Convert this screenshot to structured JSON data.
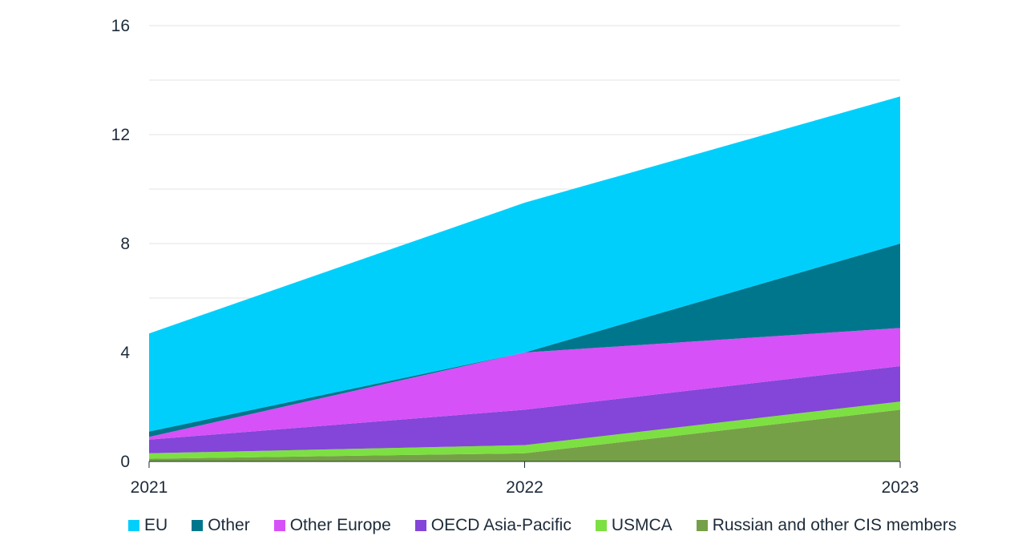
{
  "chart_data": {
    "type": "area",
    "stacked": true,
    "x": [
      "2021",
      "2022",
      "2023"
    ],
    "ylim": [
      0,
      16
    ],
    "yticks": [
      0,
      4,
      8,
      12,
      16
    ],
    "grid": true,
    "legend_position": "bottom",
    "series": [
      {
        "name": "Russian and other CIS members",
        "color": "#76a047",
        "values": [
          0.1,
          0.3,
          1.9
        ]
      },
      {
        "name": "USMCA",
        "color": "#7de042",
        "values": [
          0.2,
          0.3,
          0.3
        ]
      },
      {
        "name": "OECD Asia-Pacific",
        "color": "#8346d8",
        "values": [
          0.5,
          1.3,
          1.3
        ]
      },
      {
        "name": "Other Europe",
        "color": "#d651f7",
        "values": [
          0.1,
          2.1,
          1.4
        ]
      },
      {
        "name": "Other",
        "color": "#00768c",
        "values": [
          0.2,
          0.0,
          3.1
        ]
      },
      {
        "name": "EU",
        "color": "#00cffc",
        "values": [
          3.6,
          5.5,
          5.4
        ]
      }
    ]
  },
  "legend_order": [
    "EU",
    "Other",
    "Other Europe",
    "OECD Asia-Pacific",
    "USMCA",
    "Russian and other CIS members"
  ]
}
